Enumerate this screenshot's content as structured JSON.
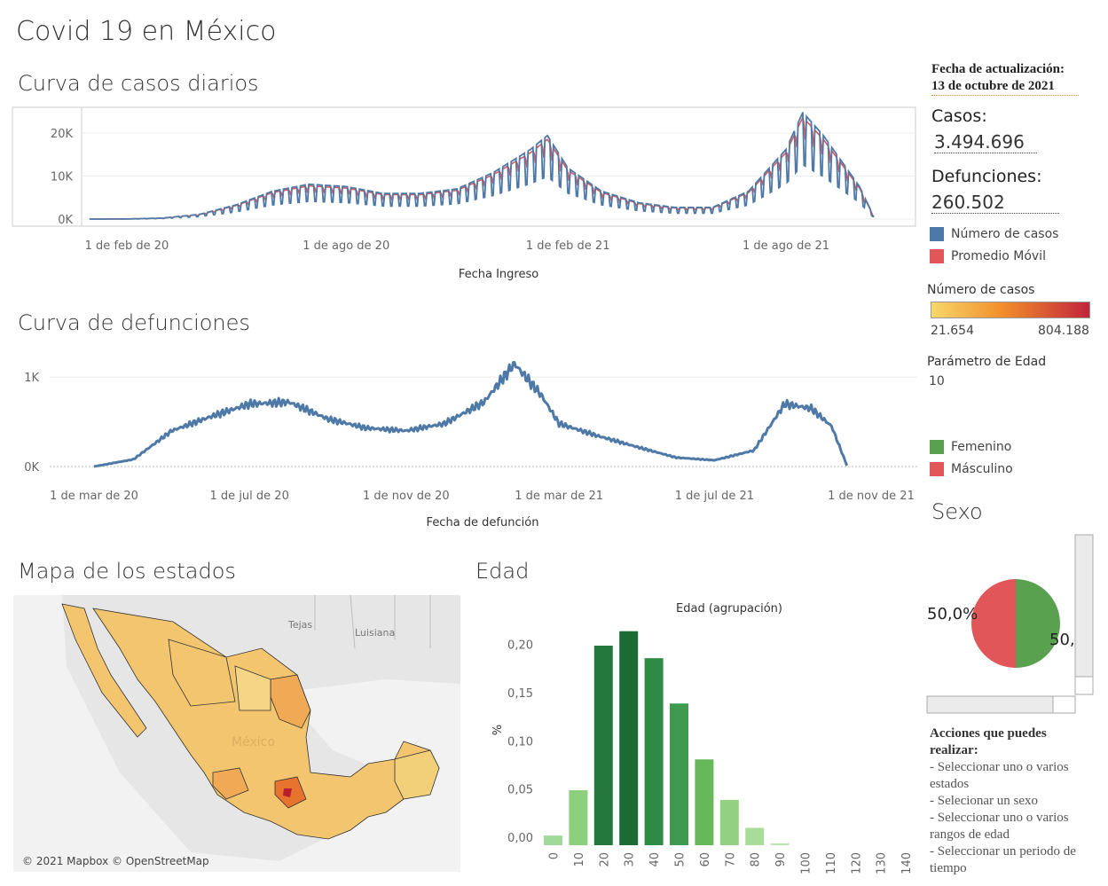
{
  "page_title": "Covid 19 en México",
  "colors": {
    "cases": "#4e79a7",
    "moving_avg": "#e15759",
    "female": "#59a14f",
    "male": "#e15759",
    "gradient_low": "#f7d76b",
    "gradient_mid": "#f28e2b",
    "gradient_high": "#c1243b"
  },
  "sidebar": {
    "update_label": "Fecha de actualización:",
    "update_date": "13 de octubre de 2021",
    "cases_label": "Casos:",
    "cases_value": "3.494.696",
    "deaths_label": "Defunciones:",
    "deaths_value": "260.502",
    "legend": [
      {
        "label": "Número de casos",
        "color": "#4e79a7"
      },
      {
        "label": "Promedio Móvil",
        "color": "#e15759"
      }
    ],
    "color_legend_title": "Número de casos",
    "color_legend_min": "21.654",
    "color_legend_max": "804.188",
    "age_param_label": "Parámetro de Edad",
    "age_param_value": "10",
    "sex_legend": [
      {
        "label": "Femenino",
        "color": "#59a14f"
      },
      {
        "label": "Másculino",
        "color": "#e15759"
      }
    ],
    "actions_title": "Acciones que puedes realizar:",
    "actions": [
      "- Seleccionar uno o varios estados",
      "- Selecionar un sexo",
      "- Seleccionar uno o varios rangos de edad",
      "- Seleccionar un periodo de tiempo"
    ]
  },
  "sex_section": {
    "title": "Sexo",
    "left_label": "50,0%",
    "right_label": "50,"
  },
  "map_section": {
    "title": "Mapa de los estados",
    "attribution": "© 2021 Mapbox © OpenStreetMap",
    "labels": [
      "Tejas",
      "Luisiana",
      "México"
    ]
  },
  "chart_data": [
    {
      "type": "line",
      "title": "Curva de casos diarios",
      "xlabel": "Fecha Ingreso",
      "ylabel": "",
      "x_ticks": [
        "1 de feb de 20",
        "1 de ago de 20",
        "1 de feb de 21",
        "1 de ago de 21"
      ],
      "y_ticks": [
        "0K",
        "10K",
        "20K"
      ],
      "ylim": [
        0,
        24000
      ],
      "series": [
        {
          "name": "Número de casos",
          "x": [
            "2020-01-01",
            "2020-02-01",
            "2020-03-01",
            "2020-04-01",
            "2020-05-01",
            "2020-06-01",
            "2020-07-01",
            "2020-08-01",
            "2020-09-01",
            "2020-10-01",
            "2020-11-01",
            "2020-12-01",
            "2021-01-01",
            "2021-01-15",
            "2021-02-01",
            "2021-03-01",
            "2021-04-01",
            "2021-05-01",
            "2021-06-01",
            "2021-07-01",
            "2021-08-01",
            "2021-08-15",
            "2021-09-01",
            "2021-10-01",
            "2021-10-13"
          ],
          "values": [
            0,
            20,
            200,
            1000,
            3000,
            6000,
            7500,
            7000,
            5500,
            5500,
            6500,
            10000,
            15000,
            18000,
            11000,
            6000,
            3500,
            2500,
            2500,
            6000,
            15000,
            23000,
            18000,
            7000,
            500
          ]
        },
        {
          "name": "Promedio Móvil",
          "x": [
            "2020-01-01",
            "2020-02-01",
            "2020-03-01",
            "2020-04-01",
            "2020-05-01",
            "2020-06-01",
            "2020-07-01",
            "2020-08-01",
            "2020-09-01",
            "2020-10-01",
            "2020-11-01",
            "2020-12-01",
            "2021-01-01",
            "2021-01-15",
            "2021-02-01",
            "2021-03-01",
            "2021-04-01",
            "2021-05-01",
            "2021-06-01",
            "2021-07-01",
            "2021-08-01",
            "2021-08-15",
            "2021-09-01",
            "2021-10-01",
            "2021-10-13"
          ],
          "values": [
            0,
            20,
            200,
            1000,
            3000,
            6000,
            7500,
            7000,
            5500,
            5500,
            6500,
            10000,
            15000,
            18000,
            11000,
            6000,
            3500,
            2500,
            2500,
            6000,
            15000,
            23000,
            18000,
            7000,
            500
          ]
        }
      ],
      "grid": true
    },
    {
      "type": "line",
      "title": "Curva de defunciones",
      "xlabel": "Fecha de defunción",
      "ylabel": "",
      "x_ticks": [
        "1 de mar de 20",
        "1 de jul de 20",
        "1 de nov de 20",
        "1 de mar de 21",
        "1 de jul de 21",
        "1 de nov de 21"
      ],
      "y_ticks": [
        "0K",
        "1K"
      ],
      "ylim": [
        0,
        1300
      ],
      "series": [
        {
          "name": "",
          "x": [
            "2020-03-01",
            "2020-04-01",
            "2020-05-01",
            "2020-06-01",
            "2020-07-01",
            "2020-08-01",
            "2020-09-01",
            "2020-10-01",
            "2020-11-01",
            "2020-12-01",
            "2021-01-01",
            "2021-01-25",
            "2021-02-15",
            "2021-03-01",
            "2021-04-01",
            "2021-05-01",
            "2021-06-01",
            "2021-07-01",
            "2021-08-01",
            "2021-08-25",
            "2021-09-15",
            "2021-10-01",
            "2021-10-13"
          ],
          "values": [
            0,
            80,
            400,
            560,
            700,
            720,
            530,
            430,
            400,
            480,
            720,
            1150,
            800,
            480,
            340,
            220,
            100,
            70,
            180,
            700,
            650,
            450,
            10
          ]
        }
      ],
      "grid": true
    },
    {
      "type": "bar",
      "title": "Edad (agrupación)",
      "xlabel": "",
      "ylabel": "%",
      "categories": [
        "0",
        "10",
        "20",
        "30",
        "40",
        "50",
        "60",
        "70",
        "80",
        "90",
        "100",
        "110",
        "120",
        "130",
        "140"
      ],
      "values": [
        0.01,
        0.057,
        0.207,
        0.222,
        0.194,
        0.147,
        0.089,
        0.047,
        0.018,
        0.002,
        0,
        0,
        0,
        0,
        0
      ],
      "y_ticks": [
        "0,00",
        "0,05",
        "0,10",
        "0,15",
        "0,20"
      ],
      "ylim": [
        0,
        0.23
      ],
      "grid": false
    },
    {
      "type": "pie",
      "title": "Sexo",
      "categories": [
        "Femenino",
        "Másculino"
      ],
      "values": [
        50.0,
        50.0
      ]
    }
  ],
  "sections": {
    "cases_title": "Curva de casos diarios",
    "deaths_title": "Curva de defunciones",
    "age_title": "Edad"
  }
}
